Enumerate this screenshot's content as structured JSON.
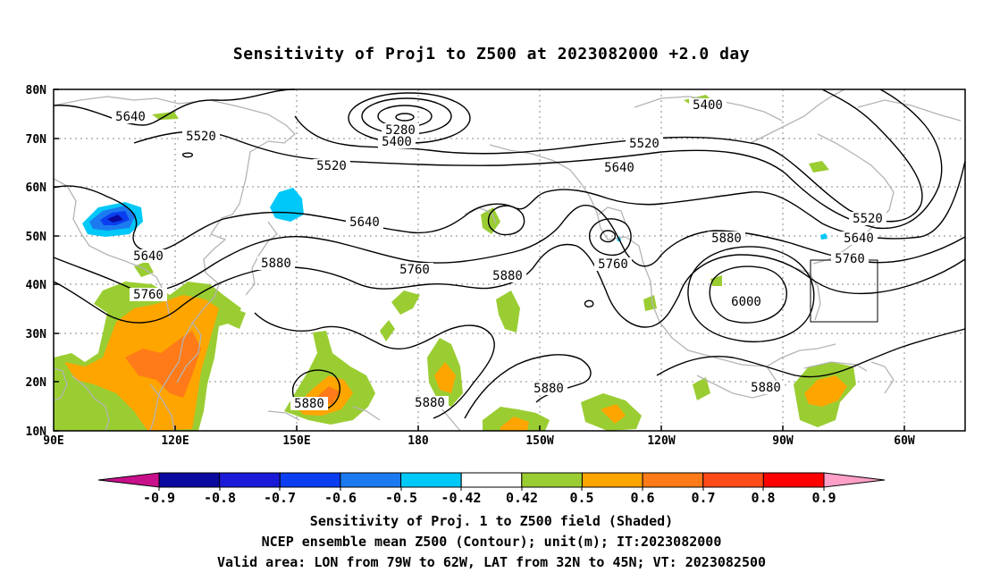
{
  "title": "Sensitivity of Proj1 to Z500 at 2023082000 +2.0 day",
  "map": {
    "lat_labels": [
      "80N",
      "70N",
      "60N",
      "50N",
      "40N",
      "30N",
      "20N",
      "10N"
    ],
    "lon_labels": [
      "90E",
      "120E",
      "150E",
      "180",
      "150W",
      "120W",
      "90W",
      "60W"
    ],
    "contour_labels": [
      {
        "text": "5640"
      },
      {
        "text": "5520"
      },
      {
        "text": "5280"
      },
      {
        "text": "5400"
      },
      {
        "text": "5520"
      },
      {
        "text": "5520"
      },
      {
        "text": "5640"
      },
      {
        "text": "5400"
      },
      {
        "text": "5640"
      },
      {
        "text": "5520"
      },
      {
        "text": "5640"
      },
      {
        "text": "5880"
      },
      {
        "text": "5760"
      },
      {
        "text": "5760"
      },
      {
        "text": "5640"
      },
      {
        "text": "5880"
      },
      {
        "text": "5760"
      },
      {
        "text": "5880"
      },
      {
        "text": "5760"
      },
      {
        "text": "6000"
      },
      {
        "text": "5880"
      },
      {
        "text": "5880"
      },
      {
        "text": "5880"
      },
      {
        "text": "5880"
      }
    ],
    "valid_area": {
      "lon_from": "79W",
      "lon_to": "62W",
      "lat_from": "32N",
      "lat_to": "45N"
    }
  },
  "colorbar": {
    "labels": [
      "-0.9",
      "-0.8",
      "-0.7",
      "-0.6",
      "-0.5",
      "-0.42",
      "0.42",
      "0.5",
      "0.6",
      "0.7",
      "0.8",
      "0.9"
    ],
    "colors": [
      "#0a0a9e",
      "#1a1ad8",
      "#0a3ef0",
      "#1c7af0",
      "#00c8f8",
      "#ffffff",
      "#9acd32",
      "#ffa500",
      "#ff7a18",
      "#ff4a1a",
      "#ff0000"
    ],
    "left_triangle_color": "#c8108a",
    "right_triangle_color": "#ffa0c8"
  },
  "footer": {
    "line1": "Sensitivity of Proj. 1 to Z500 field (Shaded)",
    "line2": "NCEP ensemble mean Z500 (Contour); unit(m); IT:2023082000",
    "line3": "Valid area: LON from 79W to 62W, LAT from 32N to 45N; VT: 2023082500"
  }
}
